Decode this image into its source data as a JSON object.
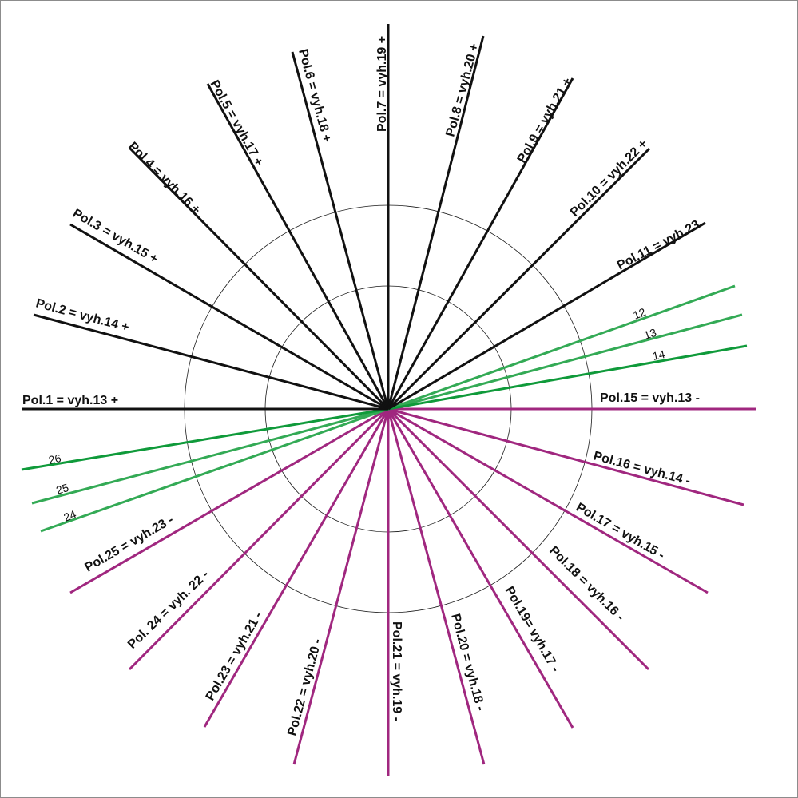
{
  "colors": {
    "positive": "#111111",
    "negative": "#a0277f",
    "green_dark": "#0f9a3a",
    "green_light": "#33aa55",
    "ring": "#1a1a1a",
    "background": "#ffffff"
  },
  "poles": [
    {
      "id": "pol1",
      "label": "Pol.1 = vyh.13 +",
      "group": "positive"
    },
    {
      "id": "pol2",
      "label": "Pol.2 = vyh.14 +",
      "group": "positive"
    },
    {
      "id": "pol3",
      "label": "Pol.3 = vyh.15 +",
      "group": "positive"
    },
    {
      "id": "pol4",
      "label": "Pol.4 = vyh.16 +",
      "group": "positive"
    },
    {
      "id": "pol5",
      "label": "Pol.5 = vyh.17 +",
      "group": "positive"
    },
    {
      "id": "pol6",
      "label": "Pol.6 = vyh.18 +",
      "group": "positive"
    },
    {
      "id": "pol7",
      "label": "Pol.7 = vyh.19 +",
      "group": "positive"
    },
    {
      "id": "pol8",
      "label": "Pol.8 = vyh.20 +",
      "group": "positive"
    },
    {
      "id": "pol9",
      "label": "Pol.9 = vyh.21 +",
      "group": "positive"
    },
    {
      "id": "pol10",
      "label": "Pol.10 = vyh.22 +",
      "group": "positive"
    },
    {
      "id": "pol11",
      "label": "Pol.11 = vyh.23",
      "group": "positive"
    },
    {
      "id": "g12",
      "label": "12",
      "group": "green"
    },
    {
      "id": "g13",
      "label": "13",
      "group": "green"
    },
    {
      "id": "g14",
      "label": "14",
      "group": "green"
    },
    {
      "id": "pol15",
      "label": "Pol.15 = vyh.13 -",
      "group": "negative"
    },
    {
      "id": "pol16",
      "label": "Pol.16 = vyh.14 -",
      "group": "negative"
    },
    {
      "id": "pol17",
      "label": "Pol.17 = vyh.15 -",
      "group": "negative"
    },
    {
      "id": "pol18",
      "label": "Pol.18 = vyh.16 -",
      "group": "negative"
    },
    {
      "id": "pol19",
      "label": "Pol.19= vyh.17 -",
      "group": "negative"
    },
    {
      "id": "pol20",
      "label": "Pol.20 = vyh.18 -",
      "group": "negative"
    },
    {
      "id": "pol21",
      "label": "Pol.21 = vyh.19 -",
      "group": "negative"
    },
    {
      "id": "pol22",
      "label": "Pol.22 = vyh.20 -",
      "group": "negative"
    },
    {
      "id": "pol23",
      "label": "Pol.23 = vyh.21 -",
      "group": "negative"
    },
    {
      "id": "pol24",
      "label": "Pol. 24 = vyh. 22 -",
      "group": "negative"
    },
    {
      "id": "pol25",
      "label": "Pol.25 = vyh.23 -",
      "group": "negative"
    },
    {
      "id": "g24",
      "label": "24",
      "group": "green"
    },
    {
      "id": "g25",
      "label": "25",
      "group": "green"
    },
    {
      "id": "g26",
      "label": "26",
      "group": "green"
    }
  ]
}
